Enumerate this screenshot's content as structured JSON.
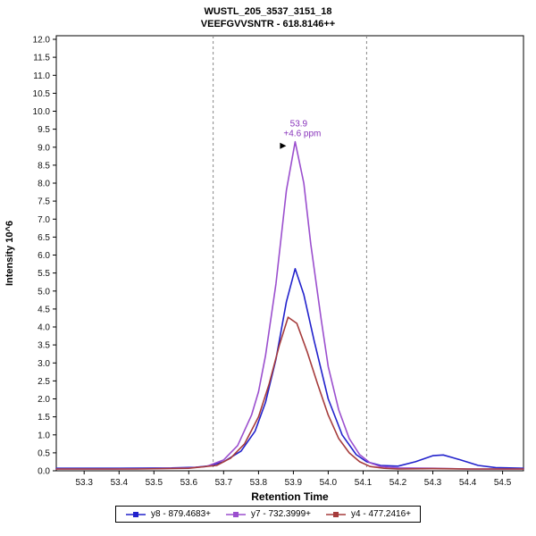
{
  "header": {
    "title_line1": "WUSTL_205_3537_3151_18",
    "title_line2": "VEEFGVVSNTR - 618.8146++"
  },
  "chart_data": {
    "type": "line",
    "title": "WUSTL_205_3537_3151_18 / VEEFGVVSNTR - 618.8146++",
    "xlabel": "Retention Time",
    "ylabel": "Intensity 10^6",
    "xlim": [
      53.22,
      54.56
    ],
    "ylim": [
      0,
      12.1
    ],
    "x_ticks": [
      53.3,
      53.4,
      53.5,
      53.6,
      53.7,
      53.8,
      53.9,
      54.0,
      54.1,
      54.2,
      54.3,
      54.4,
      54.5
    ],
    "y_ticks": [
      0.0,
      0.5,
      1.0,
      1.5,
      2.0,
      2.5,
      3.0,
      3.5,
      4.0,
      4.5,
      5.0,
      5.5,
      6.0,
      6.5,
      7.0,
      7.5,
      8.0,
      8.5,
      9.0,
      9.5,
      10.0,
      10.5,
      11.0,
      11.5,
      12.0
    ],
    "grid": false,
    "legend_position": "bottom",
    "integration_boundaries": [
      53.67,
      54.11
    ],
    "annotation": {
      "label_rt": "53.9",
      "label_ppm": "+4.6 ppm",
      "x": 53.905,
      "y": 9.15,
      "color": "#8833bb"
    },
    "boundary_color": "#888888",
    "series": [
      {
        "name": "y8 - 879.4683+",
        "color": "#2222cc",
        "points": [
          [
            53.22,
            0.07
          ],
          [
            53.4,
            0.07
          ],
          [
            53.55,
            0.08
          ],
          [
            53.62,
            0.1
          ],
          [
            53.66,
            0.14
          ],
          [
            53.7,
            0.25
          ],
          [
            53.75,
            0.55
          ],
          [
            53.79,
            1.1
          ],
          [
            53.82,
            1.9
          ],
          [
            53.85,
            3.1
          ],
          [
            53.88,
            4.7
          ],
          [
            53.905,
            5.62
          ],
          [
            53.93,
            4.9
          ],
          [
            53.96,
            3.6
          ],
          [
            54.0,
            2.0
          ],
          [
            54.04,
            1.0
          ],
          [
            54.08,
            0.45
          ],
          [
            54.11,
            0.25
          ],
          [
            54.15,
            0.15
          ],
          [
            54.2,
            0.13
          ],
          [
            54.25,
            0.25
          ],
          [
            54.3,
            0.42
          ],
          [
            54.33,
            0.44
          ],
          [
            54.38,
            0.3
          ],
          [
            54.43,
            0.15
          ],
          [
            54.48,
            0.09
          ],
          [
            54.56,
            0.07
          ]
        ]
      },
      {
        "name": "y7 - 732.3999+",
        "color": "#9b4fce",
        "points": [
          [
            53.22,
            0.05
          ],
          [
            53.35,
            0.05
          ],
          [
            53.5,
            0.06
          ],
          [
            53.6,
            0.08
          ],
          [
            53.65,
            0.12
          ],
          [
            53.7,
            0.3
          ],
          [
            53.74,
            0.7
          ],
          [
            53.78,
            1.55
          ],
          [
            53.8,
            2.2
          ],
          [
            53.82,
            3.2
          ],
          [
            53.85,
            5.2
          ],
          [
            53.88,
            7.8
          ],
          [
            53.905,
            9.15
          ],
          [
            53.93,
            8.0
          ],
          [
            53.95,
            6.3
          ],
          [
            53.98,
            4.2
          ],
          [
            54.0,
            2.9
          ],
          [
            54.03,
            1.7
          ],
          [
            54.06,
            0.9
          ],
          [
            54.09,
            0.45
          ],
          [
            54.12,
            0.22
          ],
          [
            54.15,
            0.12
          ],
          [
            54.2,
            0.08
          ],
          [
            54.3,
            0.07
          ],
          [
            54.4,
            0.05
          ],
          [
            54.5,
            0.05
          ],
          [
            54.56,
            0.05
          ]
        ]
      },
      {
        "name": "y4 - 477.2416+",
        "color": "#a63c3c",
        "points": [
          [
            53.22,
            0.05
          ],
          [
            53.45,
            0.05
          ],
          [
            53.6,
            0.07
          ],
          [
            53.68,
            0.15
          ],
          [
            53.72,
            0.35
          ],
          [
            53.76,
            0.75
          ],
          [
            53.8,
            1.5
          ],
          [
            53.83,
            2.4
          ],
          [
            53.86,
            3.5
          ],
          [
            53.885,
            4.27
          ],
          [
            53.91,
            4.1
          ],
          [
            53.94,
            3.3
          ],
          [
            53.97,
            2.4
          ],
          [
            54.0,
            1.55
          ],
          [
            54.03,
            0.9
          ],
          [
            54.06,
            0.5
          ],
          [
            54.09,
            0.25
          ],
          [
            54.12,
            0.12
          ],
          [
            54.16,
            0.07
          ],
          [
            54.2,
            0.05
          ],
          [
            54.3,
            0.06
          ],
          [
            54.4,
            0.05
          ],
          [
            54.56,
            0.05
          ]
        ]
      }
    ]
  }
}
